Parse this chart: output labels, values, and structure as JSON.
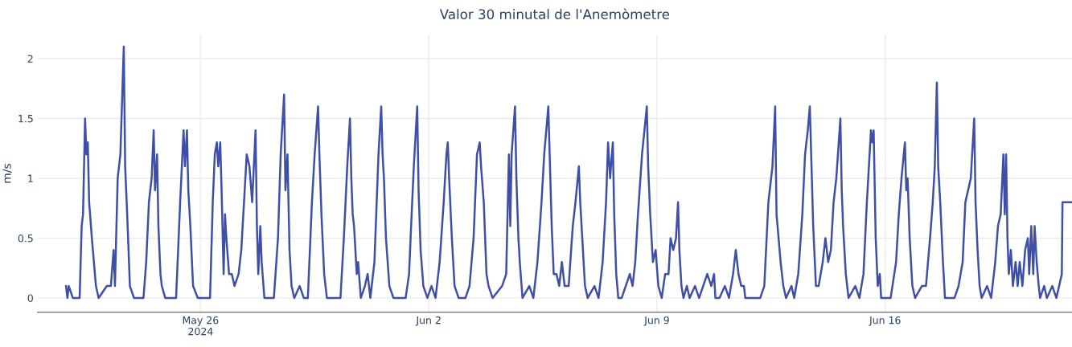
{
  "chart_data": {
    "type": "line",
    "title": "Valor 30 minutal de l'Anemòmetre",
    "ylabel": "m/s",
    "xlim": [
      "2024-05-21T00:00",
      "2024-06-21T17:30"
    ],
    "xticks": [
      {
        "value": "2024-05-26",
        "label": "May 26\n2024"
      },
      {
        "value": "2024-06-02",
        "label": "Jun 2"
      },
      {
        "value": "2024-06-09",
        "label": "Jun 9"
      },
      {
        "value": "2024-06-16",
        "label": "Jun 16"
      }
    ],
    "ylim": [
      -0.12,
      2.2
    ],
    "yticks": [
      0,
      0.5,
      1,
      1.5,
      2
    ],
    "grid": true,
    "marker": "none",
    "line_style": "solid",
    "series": [
      {
        "color": "#3f4fa8",
        "x": [
          "2024-05-21T21:00",
          "2024-05-21T22:00",
          "2024-05-21T23:00",
          "2024-05-22T02:00",
          "2024-05-22T07:00",
          "2024-05-22T08:30",
          "2024-05-22T09:30",
          "2024-05-22T11:00",
          "2024-05-22T12:00",
          "2024-05-22T13:00",
          "2024-05-22T14:00",
          "2024-05-22T16:00",
          "2024-05-22T19:00",
          "2024-05-22T21:00",
          "2024-05-23T03:00",
          "2024-05-23T06:00",
          "2024-05-23T08:00",
          "2024-05-23T09:00",
          "2024-05-23T11:00",
          "2024-05-23T13:00",
          "2024-05-23T15:30",
          "2024-05-23T16:30",
          "2024-05-23T18:00",
          "2024-05-23T20:00",
          "2024-05-23T23:00",
          "2024-05-24T06:00",
          "2024-05-24T08:00",
          "2024-05-24T10:00",
          "2024-05-24T12:00",
          "2024-05-24T13:30",
          "2024-05-24T14:30",
          "2024-05-24T16:00",
          "2024-05-24T17:00",
          "2024-05-24T18:30",
          "2024-05-24T19:30",
          "2024-05-24T22:00",
          "2024-05-25T06:00",
          "2024-05-25T09:00",
          "2024-05-25T11:30",
          "2024-05-25T12:30",
          "2024-05-25T14:00",
          "2024-05-25T15:00",
          "2024-05-25T16:30",
          "2024-05-25T18:30",
          "2024-05-25T22:00",
          "2024-05-26T07:00",
          "2024-05-26T09:00",
          "2024-05-26T10:30",
          "2024-05-26T12:00",
          "2024-05-26T13:00",
          "2024-05-26T14:30",
          "2024-05-26T15:30",
          "2024-05-26T17:00",
          "2024-05-26T18:00",
          "2024-05-26T19:00",
          "2024-05-26T21:00",
          "2024-05-26T23:00",
          "2024-05-27T01:00",
          "2024-05-27T04:00",
          "2024-05-27T06:00",
          "2024-05-27T08:00",
          "2024-05-27T10:00",
          "2024-05-27T12:00",
          "2024-05-27T14:00",
          "2024-05-27T16:30",
          "2024-05-27T17:30",
          "2024-05-27T18:30",
          "2024-05-27T20:00",
          "2024-05-27T21:00",
          "2024-05-27T23:00",
          "2024-05-28T03:00",
          "2024-05-28T06:00",
          "2024-05-28T09:00",
          "2024-05-28T11:00",
          "2024-05-28T13:30",
          "2024-05-28T14:30",
          "2024-05-28T16:00",
          "2024-05-28T17:30",
          "2024-05-28T19:00",
          "2024-05-28T21:00",
          "2024-05-29T01:00",
          "2024-05-29T04:00",
          "2024-05-29T07:00",
          "2024-05-29T10:00",
          "2024-05-29T12:00",
          "2024-05-29T14:30",
          "2024-05-29T15:30",
          "2024-05-29T17:00",
          "2024-05-29T19:00",
          "2024-05-29T21:00",
          "2024-05-30T07:00",
          "2024-05-30T09:30",
          "2024-05-30T12:00",
          "2024-05-30T14:00",
          "2024-05-30T15:00",
          "2024-05-30T16:00",
          "2024-05-30T17:00",
          "2024-05-30T19:00",
          "2024-05-30T20:00",
          "2024-05-30T22:00",
          "2024-05-31T01:00",
          "2024-05-31T03:00",
          "2024-05-31T05:00",
          "2024-05-31T08:00",
          "2024-05-31T11:00",
          "2024-05-31T13:00",
          "2024-05-31T14:00",
          "2024-05-31T15:00",
          "2024-05-31T16:30",
          "2024-05-31T19:00",
          "2024-05-31T22:00",
          "2024-06-01T07:00",
          "2024-06-01T09:30",
          "2024-06-01T11:00",
          "2024-06-01T13:00",
          "2024-06-01T15:30",
          "2024-06-01T16:30",
          "2024-06-01T18:00",
          "2024-06-01T20:00",
          "2024-06-01T23:00",
          "2024-06-02T02:00",
          "2024-06-02T05:00",
          "2024-06-02T08:00",
          "2024-06-02T11:00",
          "2024-06-02T13:00",
          "2024-06-02T14:00",
          "2024-06-02T15:00",
          "2024-06-02T17:00",
          "2024-06-02T19:00",
          "2024-06-02T22:00",
          "2024-06-03T03:00",
          "2024-06-03T06:00",
          "2024-06-03T09:00",
          "2024-06-03T11:30",
          "2024-06-03T13:30",
          "2024-06-03T14:30",
          "2024-06-03T16:30",
          "2024-06-03T18:30",
          "2024-06-03T20:00",
          "2024-06-03T23:00",
          "2024-06-04T06:00",
          "2024-06-04T09:00",
          "2024-06-04T11:00",
          "2024-06-04T12:00",
          "2024-06-04T13:00",
          "2024-06-04T15:30",
          "2024-06-04T16:30",
          "2024-06-04T18:00",
          "2024-06-04T19:00",
          "2024-06-04T21:00",
          "2024-06-05T02:00",
          "2024-06-05T05:00",
          "2024-06-05T08:00",
          "2024-06-05T11:00",
          "2024-06-05T13:00",
          "2024-06-05T16:00",
          "2024-06-05T17:00",
          "2024-06-05T18:30",
          "2024-06-05T20:00",
          "2024-06-05T22:00",
          "2024-06-06T00:00",
          "2024-06-06T02:00",
          "2024-06-06T04:00",
          "2024-06-06T07:00",
          "2024-06-06T10:00",
          "2024-06-06T12:00",
          "2024-06-06T14:30",
          "2024-06-06T15:30",
          "2024-06-06T17:00",
          "2024-06-06T19:00",
          "2024-06-06T21:00",
          "2024-06-07T02:00",
          "2024-06-07T05:00",
          "2024-06-07T08:00",
          "2024-06-07T10:30",
          "2024-06-07T12:00",
          "2024-06-07T13:30",
          "2024-06-07T15:30",
          "2024-06-07T16:30",
          "2024-06-07T18:00",
          "2024-06-07T19:30",
          "2024-06-07T22:00",
          "2024-06-08T01:00",
          "2024-06-08T04:00",
          "2024-06-08T06:00",
          "2024-06-08T08:00",
          "2024-06-08T10:00",
          "2024-06-08T13:00",
          "2024-06-08T16:30",
          "2024-06-08T17:30",
          "2024-06-08T19:00",
          "2024-06-08T21:00",
          "2024-06-08T23:00",
          "2024-06-09T01:00",
          "2024-06-09T03:30",
          "2024-06-09T06:00",
          "2024-06-09T08:30",
          "2024-06-09T10:00",
          "2024-06-09T12:00",
          "2024-06-09T14:00",
          "2024-06-09T15:30",
          "2024-06-09T16:30",
          "2024-06-09T18:00",
          "2024-06-09T19:30",
          "2024-06-09T22:00",
          "2024-06-10T00:00",
          "2024-06-10T04:00",
          "2024-06-10T07:00",
          "2024-06-10T10:00",
          "2024-06-10T13:00",
          "2024-06-10T16:00",
          "2024-06-10T18:00",
          "2024-06-10T19:00",
          "2024-06-10T22:00",
          "2024-06-11T02:00",
          "2024-06-11T05:00",
          "2024-06-11T08:00",
          "2024-06-11T10:00",
          "2024-06-11T12:00",
          "2024-06-11T14:00",
          "2024-06-11T16:00",
          "2024-06-11T17:00",
          "2024-06-12T04:00",
          "2024-06-12T07:00",
          "2024-06-12T10:00",
          "2024-06-12T13:00",
          "2024-06-12T15:00",
          "2024-06-12T16:00",
          "2024-06-12T17:30",
          "2024-06-12T19:00",
          "2024-06-12T21:00",
          "2024-06-12T23:00",
          "2024-06-13T03:00",
          "2024-06-13T05:00",
          "2024-06-13T08:00",
          "2024-06-13T11:00",
          "2024-06-13T13:00",
          "2024-06-13T15:00",
          "2024-06-13T16:30",
          "2024-06-13T17:30",
          "2024-06-13T19:00",
          "2024-06-13T21:00",
          "2024-06-13T23:00",
          "2024-06-14T02:00",
          "2024-06-14T04:00",
          "2024-06-14T06:00",
          "2024-06-14T08:00",
          "2024-06-14T10:00",
          "2024-06-14T12:00",
          "2024-06-14T15:00",
          "2024-06-14T16:00",
          "2024-06-14T17:00",
          "2024-06-14T19:00",
          "2024-06-14T21:00",
          "2024-06-15T02:00",
          "2024-06-15T05:00",
          "2024-06-15T08:00",
          "2024-06-15T10:30",
          "2024-06-15T13:30",
          "2024-06-15T14:30",
          "2024-06-15T15:30",
          "2024-06-15T17:00",
          "2024-06-15T18:30",
          "2024-06-15T20:00",
          "2024-06-15T21:00",
          "2024-06-16T04:00",
          "2024-06-16T08:00",
          "2024-06-16T10:00",
          "2024-06-16T12:00",
          "2024-06-16T14:30",
          "2024-06-16T15:30",
          "2024-06-16T16:30",
          "2024-06-16T18:00",
          "2024-06-16T20:00",
          "2024-06-16T22:00",
          "2024-06-17T03:00",
          "2024-06-17T06:00",
          "2024-06-17T09:00",
          "2024-06-17T11:00",
          "2024-06-17T12:30",
          "2024-06-17T14:00",
          "2024-06-17T15:00",
          "2024-06-17T16:30",
          "2024-06-17T18:30",
          "2024-06-17T20:00",
          "2024-06-18T03:00",
          "2024-06-18T06:00",
          "2024-06-18T09:00",
          "2024-06-18T11:00",
          "2024-06-18T13:00",
          "2024-06-18T15:00",
          "2024-06-18T17:30",
          "2024-06-18T18:30",
          "2024-06-18T20:00",
          "2024-06-18T21:30",
          "2024-06-18T23:00",
          "2024-06-19T03:00",
          "2024-06-19T06:00",
          "2024-06-19T09:00",
          "2024-06-19T11:00",
          "2024-06-19T13:00",
          "2024-06-19T15:00",
          "2024-06-19T16:00",
          "2024-06-19T17:00",
          "2024-06-19T18:00",
          "2024-06-19T19:00",
          "2024-06-19T20:30",
          "2024-06-19T22:00",
          "2024-06-20T00:00",
          "2024-06-20T01:30",
          "2024-06-20T03:00",
          "2024-06-20T05:00",
          "2024-06-20T07:00",
          "2024-06-20T09:00",
          "2024-06-20T10:00",
          "2024-06-20T11:30",
          "2024-06-20T13:00",
          "2024-06-20T14:00",
          "2024-06-20T15:30",
          "2024-06-20T17:00",
          "2024-06-20T18:00",
          "2024-06-20T21:00",
          "2024-06-20T23:00",
          "2024-06-21T03:00",
          "2024-06-21T06:00",
          "2024-06-21T08:00",
          "2024-06-21T10:00",
          "2024-06-21T10:30",
          "2024-06-21T17:00"
        ],
        "values": [
          0.1,
          0,
          0.1,
          0,
          0,
          0.6,
          0.7,
          1.5,
          1.2,
          1.3,
          0.8,
          0.5,
          0.1,
          0,
          0.1,
          0.1,
          0.4,
          0.1,
          1.0,
          1.2,
          2.1,
          1.1,
          0.7,
          0.1,
          0,
          0,
          0.3,
          0.8,
          1.0,
          1.4,
          0.9,
          1.2,
          0.6,
          0.2,
          0.1,
          0,
          0,
          0.8,
          1.4,
          1.1,
          1.4,
          0.9,
          0.6,
          0.1,
          0,
          0,
          0.8,
          1.2,
          1.3,
          1.1,
          1.3,
          0.9,
          0.2,
          0.7,
          0.5,
          0.2,
          0.2,
          0.1,
          0.2,
          0.4,
          0.8,
          1.2,
          1.1,
          0.8,
          1.4,
          0.6,
          0.2,
          0.6,
          0.3,
          0,
          0,
          0,
          0.5,
          1.2,
          1.7,
          0.9,
          1.2,
          0.4,
          0.1,
          0,
          0.1,
          0,
          0,
          0.8,
          1.2,
          1.6,
          1.2,
          0.7,
          0.2,
          0,
          0,
          0.5,
          1.1,
          1.5,
          1.0,
          0.7,
          0.6,
          0.2,
          0.3,
          0,
          0.1,
          0.2,
          0,
          0.3,
          1.2,
          1.6,
          1.2,
          1.0,
          0.5,
          0.1,
          0,
          0,
          0.2,
          0.6,
          1.1,
          1.6,
          0.9,
          0.4,
          0.1,
          0,
          0.1,
          0,
          0.3,
          0.8,
          1.2,
          1.3,
          1.0,
          0.5,
          0.1,
          0,
          0,
          0.1,
          0.5,
          1.2,
          1.3,
          1.1,
          0.8,
          0.2,
          0.1,
          0,
          0.1,
          0.2,
          1.2,
          0.6,
          1.2,
          1.6,
          1.0,
          0.5,
          0.3,
          0,
          0.1,
          0,
          0.3,
          0.8,
          1.2,
          1.6,
          1.2,
          0.6,
          0.2,
          0.2,
          0.1,
          0.3,
          0.1,
          0.1,
          0.6,
          0.8,
          1.1,
          0.8,
          0.5,
          0.1,
          0,
          0.1,
          0,
          0.3,
          0.8,
          1.3,
          1.0,
          1.3,
          0.7,
          0.2,
          0,
          0,
          0.1,
          0.2,
          0.1,
          0.3,
          0.7,
          1.2,
          1.6,
          1.1,
          0.7,
          0.3,
          0.4,
          0.1,
          0,
          0.2,
          0.2,
          0.5,
          0.4,
          0.5,
          0.8,
          0.4,
          0.1,
          0,
          0.1,
          0,
          0.1,
          0,
          0.1,
          0.2,
          0.1,
          0.2,
          0,
          0,
          0.1,
          0,
          0.2,
          0.4,
          0.2,
          0.1,
          0.1,
          0,
          0,
          0.1,
          0.8,
          1.1,
          1.6,
          0.7,
          0.5,
          0.3,
          0.1,
          0,
          0.1,
          0,
          0.2,
          0.7,
          1.2,
          1.4,
          1.6,
          1.2,
          0.6,
          0.1,
          0.1,
          0.3,
          0.5,
          0.3,
          0.4,
          0.8,
          1.0,
          1.5,
          0.9,
          0.6,
          0.2,
          0,
          0.1,
          0,
          0.2,
          0.8,
          1.4,
          1.3,
          1.4,
          0.5,
          0.1,
          0.2,
          0,
          0,
          0.3,
          0.7,
          1.0,
          1.3,
          0.9,
          1.0,
          0.5,
          0.1,
          0,
          0.1,
          0.1,
          0.5,
          0.8,
          1.1,
          1.8,
          1.1,
          0.8,
          0.3,
          0,
          0,
          0.1,
          0.3,
          0.8,
          0.9,
          1.0,
          1.5,
          0.8,
          0.4,
          0.1,
          0,
          0.1,
          0,
          0.3,
          0.6,
          0.7,
          1.2,
          0.7,
          1.2,
          0.5,
          0.2,
          0.4,
          0.1,
          0.3,
          0.1,
          0.3,
          0.1,
          0.4,
          0.5,
          0.2,
          0.6,
          0.2,
          0.6,
          0.3,
          0.1,
          0,
          0.1,
          0,
          0.1,
          0,
          0.1,
          0.2,
          0.8,
          0.8
        ]
      }
    ]
  }
}
